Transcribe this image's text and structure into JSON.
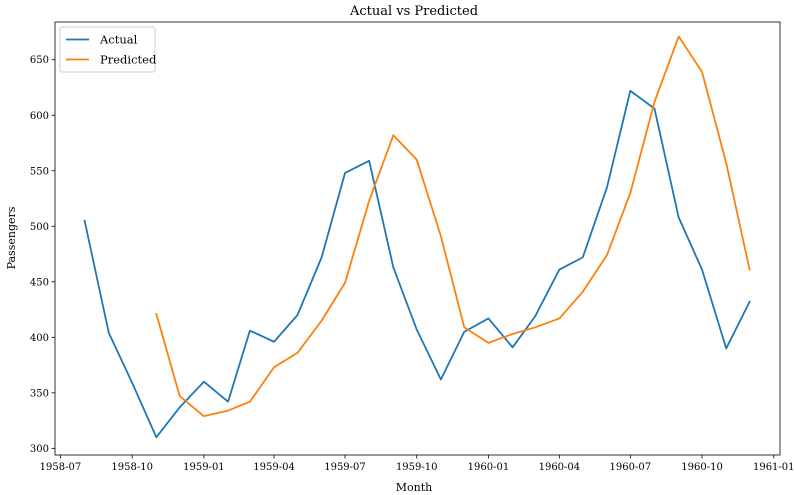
{
  "chart_data": {
    "type": "line",
    "title": "Actual vs Predicted",
    "xlabel": "Month",
    "ylabel": "Passengers",
    "x_ticks": [
      "1958-07",
      "1958-10",
      "1959-01",
      "1959-04",
      "1959-07",
      "1959-10",
      "1960-01",
      "1960-04",
      "1960-07",
      "1960-10",
      "1961-01"
    ],
    "y_ticks": [
      300,
      350,
      400,
      450,
      500,
      550,
      600,
      650
    ],
    "ylim": [
      294,
      684
    ],
    "xlim": [
      "1958-06-24",
      "1961-01-09"
    ],
    "legend_position": "top-left",
    "grid": false,
    "series": [
      {
        "name": "Actual",
        "color": "#1f77b4",
        "points": [
          {
            "x": "1958-08-01",
            "y": 505
          },
          {
            "x": "1958-09-01",
            "y": 404
          },
          {
            "x": "1958-10-01",
            "y": 359
          },
          {
            "x": "1958-11-01",
            "y": 310
          },
          {
            "x": "1958-12-01",
            "y": 337
          },
          {
            "x": "1959-01-01",
            "y": 360
          },
          {
            "x": "1959-02-01",
            "y": 342
          },
          {
            "x": "1959-03-01",
            "y": 406
          },
          {
            "x": "1959-04-01",
            "y": 396
          },
          {
            "x": "1959-05-01",
            "y": 420
          },
          {
            "x": "1959-06-01",
            "y": 472
          },
          {
            "x": "1959-07-01",
            "y": 548
          },
          {
            "x": "1959-08-01",
            "y": 559
          },
          {
            "x": "1959-09-01",
            "y": 463
          },
          {
            "x": "1959-10-01",
            "y": 407
          },
          {
            "x": "1959-11-01",
            "y": 362
          },
          {
            "x": "1959-12-01",
            "y": 405
          },
          {
            "x": "1960-01-01",
            "y": 417
          },
          {
            "x": "1960-02-01",
            "y": 391
          },
          {
            "x": "1960-03-01",
            "y": 419
          },
          {
            "x": "1960-04-01",
            "y": 461
          },
          {
            "x": "1960-05-01",
            "y": 472
          },
          {
            "x": "1960-06-01",
            "y": 535
          },
          {
            "x": "1960-07-01",
            "y": 622
          },
          {
            "x": "1960-08-01",
            "y": 606
          },
          {
            "x": "1960-09-01",
            "y": 508
          },
          {
            "x": "1960-10-01",
            "y": 461
          },
          {
            "x": "1960-11-01",
            "y": 390
          },
          {
            "x": "1960-12-01",
            "y": 432
          }
        ]
      },
      {
        "name": "Predicted",
        "color": "#ff7f0e",
        "points": [
          {
            "x": "1958-11-01",
            "y": 421
          },
          {
            "x": "1958-12-01",
            "y": 347
          },
          {
            "x": "1959-01-01",
            "y": 329
          },
          {
            "x": "1959-02-01",
            "y": 334
          },
          {
            "x": "1959-03-01",
            "y": 342
          },
          {
            "x": "1959-04-01",
            "y": 373
          },
          {
            "x": "1959-05-01",
            "y": 386
          },
          {
            "x": "1959-06-01",
            "y": 415
          },
          {
            "x": "1959-07-01",
            "y": 449
          },
          {
            "x": "1959-08-01",
            "y": 523
          },
          {
            "x": "1959-09-01",
            "y": 582
          },
          {
            "x": "1959-10-01",
            "y": 560
          },
          {
            "x": "1959-11-01",
            "y": 491
          },
          {
            "x": "1959-12-01",
            "y": 409
          },
          {
            "x": "1960-01-01",
            "y": 395
          },
          {
            "x": "1960-02-01",
            "y": 403
          },
          {
            "x": "1960-03-01",
            "y": 409
          },
          {
            "x": "1960-04-01",
            "y": 417
          },
          {
            "x": "1960-05-01",
            "y": 441
          },
          {
            "x": "1960-06-01",
            "y": 474
          },
          {
            "x": "1960-07-01",
            "y": 530
          },
          {
            "x": "1960-08-01",
            "y": 612
          },
          {
            "x": "1960-09-01",
            "y": 671
          },
          {
            "x": "1960-10-01",
            "y": 639
          },
          {
            "x": "1960-11-01",
            "y": 557
          },
          {
            "x": "1960-12-01",
            "y": 461
          }
        ]
      }
    ]
  }
}
